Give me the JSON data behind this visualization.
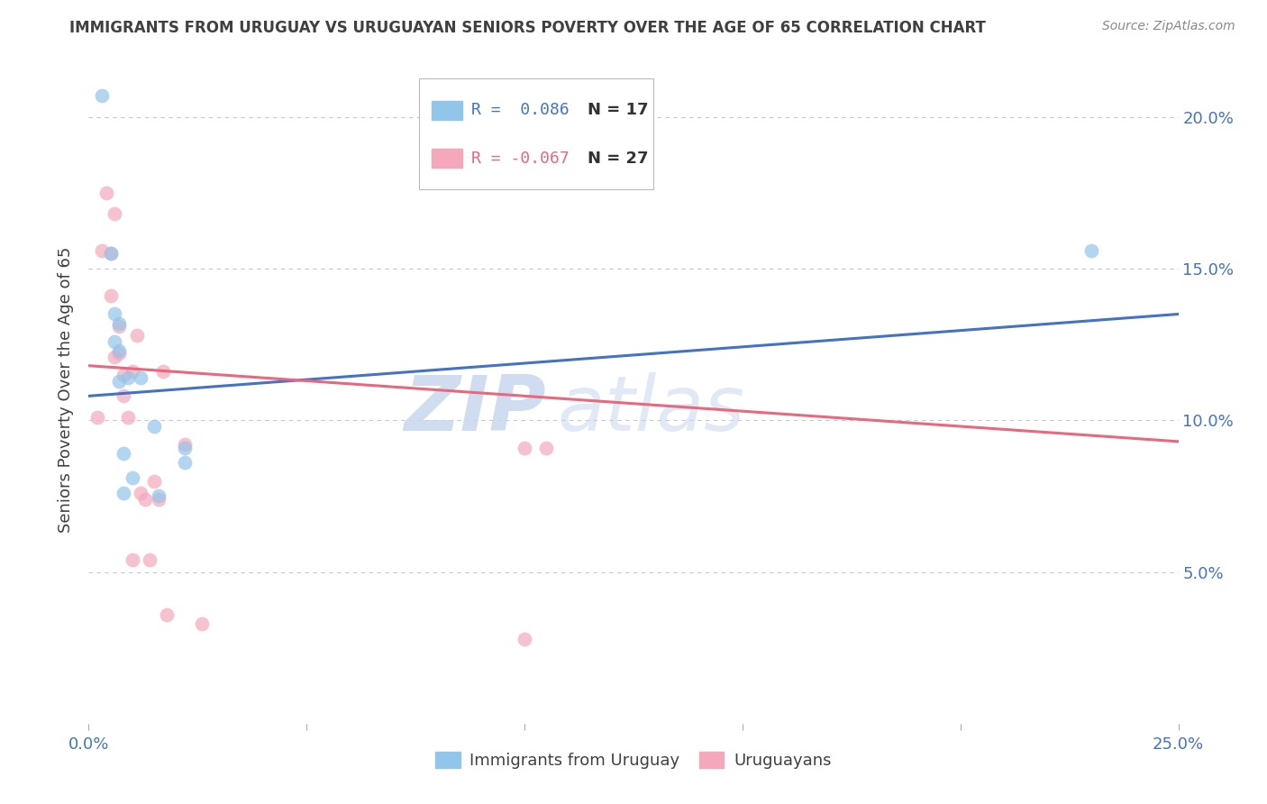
{
  "title": "IMMIGRANTS FROM URUGUAY VS URUGUAYAN SENIORS POVERTY OVER THE AGE OF 65 CORRELATION CHART",
  "source": "Source: ZipAtlas.com",
  "ylabel": "Seniors Poverty Over the Age of 65",
  "ytick_labels": [
    "5.0%",
    "10.0%",
    "15.0%",
    "20.0%"
  ],
  "ytick_values": [
    0.05,
    0.1,
    0.15,
    0.2
  ],
  "xlim": [
    0.0,
    0.25
  ],
  "ylim": [
    0.0,
    0.22
  ],
  "watermark_zip": "ZIP",
  "watermark_atlas": "atlas",
  "legend_blue_r": "R =  0.086",
  "legend_blue_n": "N = 17",
  "legend_pink_r": "R = -0.067",
  "legend_pink_n": "N = 27",
  "legend_label_blue": "Immigrants from Uruguay",
  "legend_label_pink": "Uruguayans",
  "blue_scatter_x": [
    0.003,
    0.005,
    0.006,
    0.006,
    0.007,
    0.007,
    0.007,
    0.008,
    0.008,
    0.009,
    0.01,
    0.012,
    0.015,
    0.016,
    0.022,
    0.022,
    0.23
  ],
  "blue_scatter_y": [
    0.207,
    0.155,
    0.135,
    0.126,
    0.132,
    0.123,
    0.113,
    0.089,
    0.076,
    0.114,
    0.081,
    0.114,
    0.098,
    0.075,
    0.091,
    0.086,
    0.156
  ],
  "pink_scatter_x": [
    0.002,
    0.003,
    0.004,
    0.005,
    0.005,
    0.006,
    0.006,
    0.007,
    0.007,
    0.008,
    0.008,
    0.009,
    0.01,
    0.01,
    0.011,
    0.012,
    0.013,
    0.014,
    0.015,
    0.016,
    0.017,
    0.018,
    0.022,
    0.026,
    0.1,
    0.1,
    0.105
  ],
  "pink_scatter_y": [
    0.101,
    0.156,
    0.175,
    0.155,
    0.141,
    0.121,
    0.168,
    0.131,
    0.122,
    0.115,
    0.108,
    0.101,
    0.116,
    0.054,
    0.128,
    0.076,
    0.074,
    0.054,
    0.08,
    0.074,
    0.116,
    0.036,
    0.092,
    0.033,
    0.028,
    0.091,
    0.091
  ],
  "blue_line_x": [
    0.0,
    0.25
  ],
  "blue_line_y": [
    0.108,
    0.135
  ],
  "pink_line_x": [
    0.0,
    0.25
  ],
  "pink_line_y": [
    0.118,
    0.093
  ],
  "blue_color": "#92C5EA",
  "pink_color": "#F5A8BC",
  "blue_line_color": "#4472C4",
  "pink_line_color": "#E8687E",
  "grid_color": "#C8C8C8",
  "background_color": "#FFFFFF",
  "title_color": "#404040",
  "source_color": "#888888",
  "axis_label_color": "#404040",
  "tick_color": "#4472C4"
}
